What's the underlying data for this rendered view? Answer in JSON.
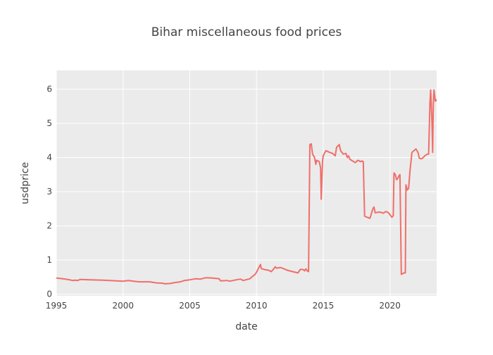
{
  "chart_data": {
    "type": "line",
    "title": "Bihar miscellaneous food prices",
    "xlabel": "date",
    "ylabel": "usdprice",
    "xlim": [
      1995.0,
      2023.5
    ],
    "ylim": [
      -0.05,
      6.55
    ],
    "x_ticks": [
      1995,
      2000,
      2005,
      2010,
      2015,
      2020
    ],
    "y_ticks": [
      0,
      1,
      2,
      3,
      4,
      5,
      6
    ],
    "grid": true,
    "legend": "none",
    "colors": {
      "line": "#ef6f6a",
      "plot_bg": "#ebebeb",
      "grid": "#ffffff",
      "text": "#444444"
    },
    "series": [
      {
        "points": [
          [
            1995.0,
            0.47
          ],
          [
            1995.5,
            0.45
          ],
          [
            1996.0,
            0.42
          ],
          [
            1996.2,
            0.4
          ],
          [
            1996.4,
            0.41
          ],
          [
            1996.6,
            0.4
          ],
          [
            1996.8,
            0.43
          ],
          [
            1997.5,
            0.42
          ],
          [
            1998.5,
            0.41
          ],
          [
            1999.0,
            0.4
          ],
          [
            1999.5,
            0.39
          ],
          [
            2000.0,
            0.38
          ],
          [
            2000.4,
            0.4
          ],
          [
            2000.8,
            0.38
          ],
          [
            2001.2,
            0.36
          ],
          [
            2002.0,
            0.36
          ],
          [
            2002.5,
            0.33
          ],
          [
            2003.0,
            0.32
          ],
          [
            2003.1,
            0.3
          ],
          [
            2003.5,
            0.31
          ],
          [
            2003.9,
            0.34
          ],
          [
            2004.3,
            0.36
          ],
          [
            2004.6,
            0.4
          ],
          [
            2005.0,
            0.42
          ],
          [
            2005.4,
            0.45
          ],
          [
            2005.8,
            0.44
          ],
          [
            2006.2,
            0.48
          ],
          [
            2006.7,
            0.47
          ],
          [
            2007.2,
            0.45
          ],
          [
            2007.3,
            0.39
          ],
          [
            2007.8,
            0.4
          ],
          [
            2008.0,
            0.38
          ],
          [
            2008.5,
            0.42
          ],
          [
            2008.8,
            0.44
          ],
          [
            2009.0,
            0.4
          ],
          [
            2009.5,
            0.45
          ],
          [
            2009.7,
            0.52
          ],
          [
            2009.9,
            0.58
          ],
          [
            2010.0,
            0.64
          ],
          [
            2010.1,
            0.72
          ],
          [
            2010.2,
            0.8
          ],
          [
            2010.3,
            0.87
          ],
          [
            2010.35,
            0.75
          ],
          [
            2010.6,
            0.72
          ],
          [
            2010.9,
            0.7
          ],
          [
            2011.1,
            0.66
          ],
          [
            2011.3,
            0.74
          ],
          [
            2011.4,
            0.8
          ],
          [
            2011.5,
            0.76
          ],
          [
            2011.8,
            0.78
          ],
          [
            2012.0,
            0.75
          ],
          [
            2012.3,
            0.7
          ],
          [
            2012.6,
            0.67
          ],
          [
            2012.9,
            0.64
          ],
          [
            2013.1,
            0.62
          ],
          [
            2013.3,
            0.73
          ],
          [
            2013.5,
            0.72
          ],
          [
            2013.6,
            0.68
          ],
          [
            2013.7,
            0.74
          ],
          [
            2013.8,
            0.68
          ],
          [
            2013.9,
            0.66
          ],
          [
            2014.0,
            4.38
          ],
          [
            2014.1,
            4.4
          ],
          [
            2014.2,
            4.1
          ],
          [
            2014.35,
            4.0
          ],
          [
            2014.45,
            3.8
          ],
          [
            2014.5,
            3.92
          ],
          [
            2014.7,
            3.88
          ],
          [
            2014.8,
            3.7
          ],
          [
            2014.85,
            2.78
          ],
          [
            2014.95,
            3.9
          ],
          [
            2015.0,
            4.05
          ],
          [
            2015.2,
            4.2
          ],
          [
            2015.5,
            4.15
          ],
          [
            2015.7,
            4.12
          ],
          [
            2015.9,
            4.05
          ],
          [
            2016.0,
            4.3
          ],
          [
            2016.2,
            4.38
          ],
          [
            2016.3,
            4.2
          ],
          [
            2016.5,
            4.1
          ],
          [
            2016.7,
            4.12
          ],
          [
            2016.8,
            4.0
          ],
          [
            2016.9,
            4.05
          ],
          [
            2017.0,
            3.95
          ],
          [
            2017.2,
            3.9
          ],
          [
            2017.4,
            3.85
          ],
          [
            2017.6,
            3.92
          ],
          [
            2017.8,
            3.88
          ],
          [
            2017.9,
            3.9
          ],
          [
            2018.0,
            3.88
          ],
          [
            2018.1,
            2.28
          ],
          [
            2018.3,
            2.25
          ],
          [
            2018.5,
            2.22
          ],
          [
            2018.7,
            2.48
          ],
          [
            2018.8,
            2.55
          ],
          [
            2018.9,
            2.38
          ],
          [
            2019.1,
            2.4
          ],
          [
            2019.3,
            2.4
          ],
          [
            2019.5,
            2.37
          ],
          [
            2019.7,
            2.42
          ],
          [
            2019.9,
            2.38
          ],
          [
            2020.05,
            2.3
          ],
          [
            2020.15,
            2.25
          ],
          [
            2020.25,
            2.3
          ],
          [
            2020.3,
            3.55
          ],
          [
            2020.4,
            3.5
          ],
          [
            2020.5,
            3.35
          ],
          [
            2020.6,
            3.4
          ],
          [
            2020.7,
            3.48
          ],
          [
            2020.75,
            3.5
          ],
          [
            2020.85,
            0.58
          ],
          [
            2020.95,
            0.6
          ],
          [
            2021.05,
            0.62
          ],
          [
            2021.15,
            0.62
          ],
          [
            2021.2,
            3.2
          ],
          [
            2021.3,
            3.05
          ],
          [
            2021.4,
            3.1
          ],
          [
            2021.5,
            3.6
          ],
          [
            2021.65,
            4.15
          ],
          [
            2021.8,
            4.2
          ],
          [
            2021.95,
            4.25
          ],
          [
            2022.1,
            4.15
          ],
          [
            2022.2,
            3.98
          ],
          [
            2022.35,
            3.96
          ],
          [
            2022.5,
            4.0
          ],
          [
            2022.6,
            4.05
          ],
          [
            2022.7,
            4.07
          ],
          [
            2022.8,
            4.1
          ],
          [
            2022.9,
            4.1
          ],
          [
            2022.95,
            4.9
          ],
          [
            2023.0,
            5.6
          ],
          [
            2023.05,
            5.98
          ],
          [
            2023.15,
            5.0
          ],
          [
            2023.2,
            4.15
          ],
          [
            2023.25,
            5.6
          ],
          [
            2023.3,
            5.98
          ],
          [
            2023.4,
            5.65
          ],
          [
            2023.5,
            5.7
          ]
        ]
      }
    ]
  }
}
